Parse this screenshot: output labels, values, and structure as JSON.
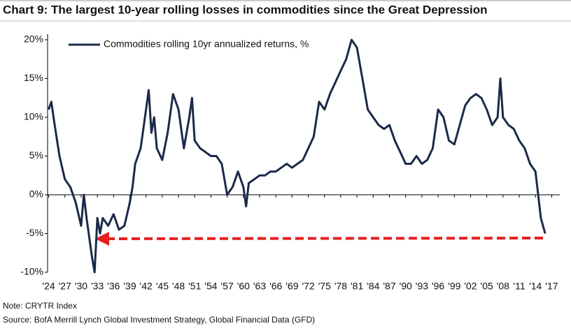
{
  "chart_data": {
    "type": "line",
    "title": "Chart 9: The largest 10-year rolling losses in commodities since the Great Depression",
    "notes": [
      "Note: CRYTR Index",
      "Source: BofA Merrill Lynch Global Investment Strategy, Global Financial Data (GFD)"
    ],
    "legend": "upper left",
    "xlim": [
      1923.8,
      2018.5
    ],
    "ylim": [
      -10,
      20
    ],
    "yticks": [
      {
        "value": -10,
        "label": "-10%"
      },
      {
        "value": -5,
        "label": "-5%"
      },
      {
        "value": 0,
        "label": "0%"
      },
      {
        "value": 5,
        "label": "5%"
      },
      {
        "value": 10,
        "label": "10%"
      },
      {
        "value": 15,
        "label": "15%"
      },
      {
        "value": 20,
        "label": "20%"
      }
    ],
    "xticks": [
      {
        "value": 1924,
        "label": "'24"
      },
      {
        "value": 1927,
        "label": "'27"
      },
      {
        "value": 1930,
        "label": "'30"
      },
      {
        "value": 1933,
        "label": "'33"
      },
      {
        "value": 1936,
        "label": "'36"
      },
      {
        "value": 1939,
        "label": "'39"
      },
      {
        "value": 1942,
        "label": "'42"
      },
      {
        "value": 1945,
        "label": "'45"
      },
      {
        "value": 1948,
        "label": "'48"
      },
      {
        "value": 1951,
        "label": "'51"
      },
      {
        "value": 1954,
        "label": "'54"
      },
      {
        "value": 1957,
        "label": "'57"
      },
      {
        "value": 1960,
        "label": "'60"
      },
      {
        "value": 1963,
        "label": "'63"
      },
      {
        "value": 1966,
        "label": "'66"
      },
      {
        "value": 1969,
        "label": "'69"
      },
      {
        "value": 1972,
        "label": "'72"
      },
      {
        "value": 1975,
        "label": "'75"
      },
      {
        "value": 1978,
        "label": "'78"
      },
      {
        "value": 1981,
        "label": "'81"
      },
      {
        "value": 1984,
        "label": "'84"
      },
      {
        "value": 1987,
        "label": "'87"
      },
      {
        "value": 1990,
        "label": "'90"
      },
      {
        "value": 1993,
        "label": "'93"
      },
      {
        "value": 1996,
        "label": "'96"
      },
      {
        "value": 1999,
        "label": "'99"
      },
      {
        "value": 2002,
        "label": "'02"
      },
      {
        "value": 2005,
        "label": "'05"
      },
      {
        "value": 2008,
        "label": "'08"
      },
      {
        "value": 2011,
        "label": "'11"
      },
      {
        "value": 2014,
        "label": "'14"
      },
      {
        "value": 2017,
        "label": "'17"
      }
    ],
    "x": [
      1924,
      1924.5,
      1925,
      1926,
      1927,
      1928,
      1929,
      1930,
      1930.5,
      1931,
      1932,
      1932.5,
      1933,
      1933.5,
      1934,
      1935,
      1936,
      1937,
      1938,
      1939,
      1939.5,
      1940,
      1941,
      1942,
      1942.5,
      1943,
      1943.5,
      1944,
      1945,
      1946,
      1947,
      1948,
      1949,
      1950,
      1950.5,
      1951,
      1952,
      1953,
      1954,
      1955,
      1956,
      1957,
      1958,
      1959,
      1960,
      1960.5,
      1961,
      1962,
      1963,
      1964,
      1965,
      1966,
      1967,
      1968,
      1969,
      1970,
      1971,
      1972,
      1973,
      1974,
      1975,
      1976,
      1977,
      1978,
      1979,
      1980,
      1981,
      1982,
      1983,
      1984,
      1985,
      1986,
      1987,
      1988,
      1989,
      1990,
      1991,
      1992,
      1993,
      1994,
      1995,
      1996,
      1997,
      1998,
      1999,
      2000,
      2001,
      2002,
      2003,
      2004,
      2005,
      2006,
      2007,
      2007.5,
      2008,
      2009,
      2010,
      2011,
      2012,
      2013,
      2014,
      2014.5,
      2015,
      2015.8
    ],
    "series": [
      {
        "name": "Commodities rolling 10yr annualized returns, %",
        "color": "#1b2a4a",
        "values": [
          11,
          12,
          9.5,
          5,
          2,
          1,
          -1,
          -4,
          0,
          -3,
          -8,
          -10,
          -3,
          -5,
          -3,
          -4,
          -2.5,
          -4.5,
          -4,
          -1,
          1,
          4,
          6,
          11,
          13.5,
          8,
          10,
          6,
          4.5,
          8,
          13,
          11,
          6,
          10,
          12.5,
          7,
          6,
          5.5,
          5,
          5,
          4,
          0,
          1,
          3,
          1,
          -1.5,
          1.5,
          2,
          2.5,
          2.5,
          3,
          3,
          3.5,
          4,
          3.5,
          4,
          4.5,
          6,
          7.5,
          12,
          11,
          13,
          14.5,
          16,
          17.5,
          20,
          19,
          15,
          11,
          10,
          9,
          8.5,
          9,
          7,
          5.5,
          4,
          4,
          5,
          4,
          4.5,
          6,
          11,
          10,
          7,
          6.5,
          9,
          11.5,
          12.5,
          13,
          12.5,
          11,
          9,
          10,
          15,
          10,
          9,
          8.5,
          7,
          6,
          4,
          3,
          0,
          -3,
          -5
        ]
      }
    ]
  }
}
